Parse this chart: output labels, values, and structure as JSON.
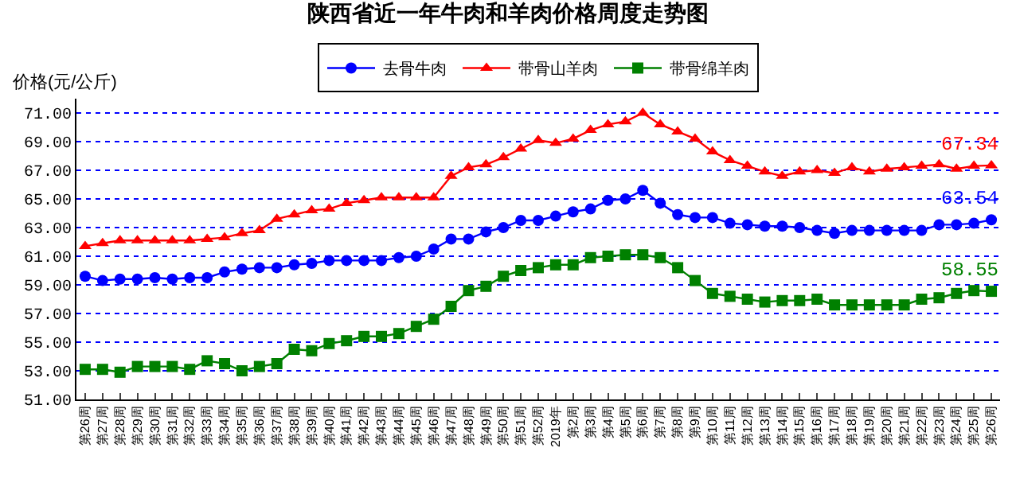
{
  "chart_data": {
    "type": "line",
    "title": "陕西省近一年牛肉和羊肉价格周度走势图",
    "ylabel": "价格(元/公斤)",
    "categories": [
      "第26周",
      "第27周",
      "第28周",
      "第29周",
      "第30周",
      "第31周",
      "第32周",
      "第33周",
      "第34周",
      "第35周",
      "第36周",
      "第37周",
      "第38周",
      "第39周",
      "第40周",
      "第41周",
      "第42周",
      "第43周",
      "第44周",
      "第45周",
      "第46周",
      "第47周",
      "第48周",
      "第49周",
      "第50周",
      "第51周",
      "第52周",
      "2019年",
      "第2周",
      "第3周",
      "第4周",
      "第5周",
      "第6周",
      "第7周",
      "第8周",
      "第9周",
      "第10周",
      "第11周",
      "第12周",
      "第13周",
      "第14周",
      "第15周",
      "第16周",
      "第17周",
      "第18周",
      "第19周",
      "第20周",
      "第21周",
      "第22周",
      "第23周",
      "第24周",
      "第25周",
      "第26周"
    ],
    "series": [
      {
        "name": "去骨牛肉",
        "color": "#0000ff",
        "marker": "circle",
        "values": [
          59.6,
          59.3,
          59.4,
          59.4,
          59.5,
          59.4,
          59.5,
          59.5,
          59.9,
          60.1,
          60.2,
          60.2,
          60.4,
          60.5,
          60.7,
          60.7,
          60.7,
          60.7,
          60.9,
          61.0,
          61.5,
          62.2,
          62.2,
          62.7,
          63.0,
          63.5,
          63.5,
          63.8,
          64.1,
          64.3,
          64.9,
          65.0,
          65.6,
          64.7,
          63.9,
          63.7,
          63.7,
          63.3,
          63.2,
          63.1,
          63.1,
          63.0,
          62.8,
          62.6,
          62.8,
          62.8,
          62.8,
          62.8,
          62.8,
          63.2,
          63.2,
          63.3,
          63.54
        ],
        "value_labels": [
          null,
          null,
          null,
          null,
          null,
          null,
          null,
          null,
          null,
          null,
          null,
          null,
          null,
          null,
          null,
          null,
          null,
          null,
          null,
          null,
          null,
          null,
          null,
          null,
          null,
          null,
          null,
          null,
          null,
          null,
          null,
          null,
          null,
          null,
          null,
          null,
          null,
          null,
          null,
          null,
          null,
          null,
          null,
          null,
          null,
          null,
          null,
          null,
          null,
          null,
          null,
          null,
          "63.54"
        ]
      },
      {
        "name": "带骨山羊肉",
        "color": "#ff0000",
        "marker": "triangle",
        "values": [
          61.7,
          61.9,
          62.1,
          62.1,
          62.1,
          62.1,
          62.1,
          62.2,
          62.3,
          62.6,
          62.8,
          63.6,
          63.9,
          64.2,
          64.3,
          64.7,
          64.9,
          65.1,
          65.1,
          65.1,
          65.1,
          66.6,
          67.2,
          67.4,
          67.9,
          68.5,
          69.1,
          68.9,
          69.2,
          69.8,
          70.2,
          70.4,
          71.0,
          70.2,
          69.7,
          69.2,
          68.3,
          67.7,
          67.3,
          66.9,
          66.6,
          66.9,
          67.0,
          66.8,
          67.2,
          66.9,
          67.1,
          67.2,
          67.3,
          67.4,
          67.1,
          67.3,
          67.34
        ],
        "value_labels": [
          null,
          null,
          null,
          null,
          null,
          null,
          null,
          null,
          null,
          null,
          null,
          null,
          null,
          null,
          null,
          null,
          null,
          null,
          null,
          null,
          null,
          null,
          null,
          null,
          null,
          null,
          null,
          null,
          null,
          null,
          null,
          null,
          null,
          null,
          null,
          null,
          null,
          null,
          null,
          null,
          null,
          null,
          null,
          null,
          null,
          null,
          null,
          null,
          null,
          null,
          null,
          null,
          "67.34"
        ]
      },
      {
        "name": "带骨绵羊肉",
        "color": "#008000",
        "marker": "square",
        "values": [
          53.1,
          53.1,
          52.9,
          53.3,
          53.3,
          53.3,
          53.1,
          53.7,
          53.5,
          53.0,
          53.3,
          53.5,
          54.5,
          54.4,
          54.9,
          55.1,
          55.4,
          55.4,
          55.6,
          56.1,
          56.6,
          57.5,
          58.6,
          58.9,
          59.6,
          60.0,
          60.2,
          60.4,
          60.4,
          60.9,
          61.0,
          61.1,
          61.1,
          60.9,
          60.2,
          59.3,
          58.4,
          58.2,
          58.0,
          57.8,
          57.9,
          57.9,
          58.0,
          57.6,
          57.6,
          57.6,
          57.6,
          57.6,
          58.0,
          58.1,
          58.4,
          58.6,
          58.55
        ],
        "value_labels": [
          null,
          null,
          null,
          null,
          null,
          null,
          null,
          null,
          null,
          null,
          null,
          null,
          null,
          null,
          null,
          null,
          null,
          null,
          null,
          null,
          null,
          null,
          null,
          null,
          null,
          null,
          null,
          null,
          null,
          null,
          null,
          null,
          null,
          null,
          null,
          null,
          null,
          null,
          null,
          null,
          null,
          null,
          null,
          null,
          null,
          null,
          null,
          null,
          null,
          null,
          null,
          null,
          "58.55"
        ]
      }
    ],
    "ylim": [
      51,
      72
    ],
    "yticks": [
      {
        "value": 51,
        "label": "51.00"
      },
      {
        "value": 53,
        "label": "53.00"
      },
      {
        "value": 55,
        "label": "55.00"
      },
      {
        "value": 57,
        "label": "57.00"
      },
      {
        "value": 59,
        "label": "59.00"
      },
      {
        "value": 61,
        "label": "61.00"
      },
      {
        "value": 63,
        "label": "63.00"
      },
      {
        "value": 65,
        "label": "65.00"
      },
      {
        "value": 67,
        "label": "67.00"
      },
      {
        "value": 69,
        "label": "69.00"
      },
      {
        "value": 71,
        "label": "71.00"
      }
    ],
    "grid": "y",
    "legend": "top",
    "line_style": "solid"
  }
}
